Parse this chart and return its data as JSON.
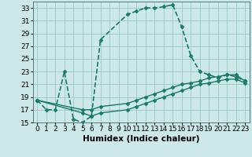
{
  "xlabel": "Humidex (Indice chaleur)",
  "bg_color": "#cce8e8",
  "grid_color": "#9ac8c8",
  "line_color": "#1a7a6a",
  "xlim": [
    -0.5,
    23.5
  ],
  "ylim": [
    15,
    34
  ],
  "yticks": [
    15,
    17,
    19,
    21,
    23,
    25,
    27,
    29,
    31,
    33
  ],
  "xticks": [
    0,
    1,
    2,
    3,
    4,
    5,
    6,
    7,
    8,
    9,
    10,
    11,
    12,
    13,
    14,
    15,
    16,
    17,
    18,
    19,
    20,
    21,
    22,
    23
  ],
  "series": [
    {
      "x": [
        0,
        1,
        2,
        3,
        4,
        5,
        6,
        7,
        10,
        11,
        12,
        13,
        14,
        15,
        16,
        17,
        18,
        19,
        20,
        21,
        22,
        23
      ],
      "y": [
        18.5,
        17.0,
        17.0,
        23.0,
        15.5,
        15.0,
        16.0,
        28.0,
        32.0,
        32.5,
        33.0,
        33.0,
        33.2,
        33.5,
        30.0,
        25.5,
        23.0,
        22.5,
        22.0,
        22.5,
        22.2,
        21.5
      ],
      "marker": "D",
      "markersize": 2.5,
      "linewidth": 1.2,
      "linestyle": "--"
    },
    {
      "x": [
        0,
        5,
        6,
        7,
        10,
        11,
        12,
        13,
        14,
        15,
        16,
        17,
        18,
        19,
        20,
        21,
        22,
        23
      ],
      "y": [
        18.5,
        17.0,
        17.0,
        17.5,
        18.0,
        18.5,
        19.0,
        19.5,
        20.0,
        20.5,
        21.0,
        21.2,
        21.5,
        22.0,
        22.2,
        22.5,
        22.5,
        21.5
      ],
      "marker": "D",
      "markersize": 2.5,
      "linewidth": 1.0,
      "linestyle": "-"
    },
    {
      "x": [
        0,
        5,
        6,
        7,
        10,
        11,
        12,
        13,
        14,
        15,
        16,
        17,
        18,
        19,
        20,
        21,
        22,
        23
      ],
      "y": [
        18.5,
        16.5,
        16.0,
        16.5,
        17.0,
        17.5,
        18.0,
        18.5,
        19.0,
        19.5,
        20.0,
        20.5,
        21.0,
        21.2,
        21.5,
        21.8,
        21.8,
        21.2
      ],
      "marker": "D",
      "markersize": 2.5,
      "linewidth": 1.0,
      "linestyle": "-"
    }
  ],
  "xlabel_fontsize": 7.5,
  "tick_fontsize": 6.5
}
